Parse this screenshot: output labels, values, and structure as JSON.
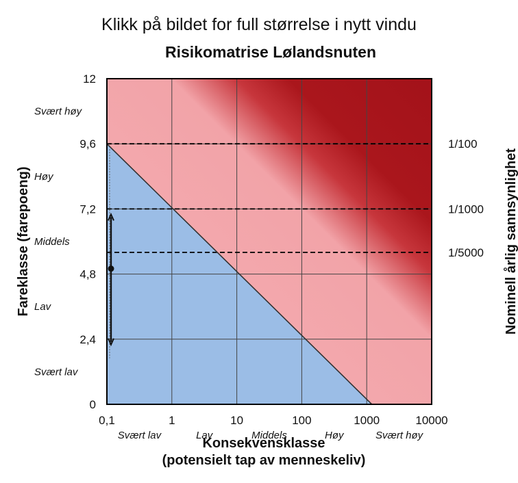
{
  "caption": "Klikk på bildet for full størrelse i nytt vindu",
  "chart_data": {
    "type": "heatmap",
    "title": "Risikomatrise Lølandsnuten",
    "xlabel": "Konsekvensklasse",
    "xlabel_sub": "(potensielt tap av menneskeliv)",
    "ylabel": "Fareklasse (farepoeng)",
    "ylabel_right": "Nominell årlig sannsynlighet",
    "x_scale": "log",
    "xlim": [
      0.1,
      10000
    ],
    "ylim": [
      0,
      12
    ],
    "x_ticks": [
      {
        "value": 0.1,
        "label": "0,1"
      },
      {
        "value": 1,
        "label": "1"
      },
      {
        "value": 10,
        "label": "10"
      },
      {
        "value": 100,
        "label": "100"
      },
      {
        "value": 1000,
        "label": "1000"
      },
      {
        "value": 10000,
        "label": "10000"
      }
    ],
    "y_ticks": [
      {
        "value": 0,
        "label": "0"
      },
      {
        "value": 2.4,
        "label": "2,4"
      },
      {
        "value": 4.8,
        "label": "4,8"
      },
      {
        "value": 7.2,
        "label": "7,2"
      },
      {
        "value": 9.6,
        "label": "9,6"
      },
      {
        "value": 12,
        "label": "12"
      }
    ],
    "x_classes": [
      {
        "from": 0.1,
        "to": 1,
        "label": "Svært lav"
      },
      {
        "from": 1,
        "to": 10,
        "label": "Lav"
      },
      {
        "from": 10,
        "to": 100,
        "label": "Middels"
      },
      {
        "from": 100,
        "to": 1000,
        "label": "Høy"
      },
      {
        "from": 1000,
        "to": 10000,
        "label": "Svært høy"
      }
    ],
    "y_classes": [
      {
        "from": 0,
        "to": 2.4,
        "label": "Svært lav"
      },
      {
        "from": 2.4,
        "to": 4.8,
        "label": "Lav"
      },
      {
        "from": 4.8,
        "to": 7.2,
        "label": "Middels"
      },
      {
        "from": 7.2,
        "to": 9.6,
        "label": "Høy"
      },
      {
        "from": 9.6,
        "to": 12,
        "label": "Svært høy"
      }
    ],
    "probability_lines": [
      {
        "y": 9.6,
        "label": "1/100"
      },
      {
        "y": 7.2,
        "label": "1/1000"
      },
      {
        "y": 5.6,
        "label": "1/5000"
      }
    ],
    "acceptance_line": {
      "from": [
        0.1,
        9.6
      ],
      "to": [
        1200,
        0
      ]
    },
    "point_estimate": {
      "x": 0.1,
      "y": 5.0,
      "range": [
        2.2,
        7.0
      ]
    },
    "grid": true,
    "colors": {
      "acceptable": "#9bbde6",
      "medium": "#f2a7ac",
      "high": "#a8141a",
      "grid": "#444444",
      "frame": "#000000"
    }
  }
}
